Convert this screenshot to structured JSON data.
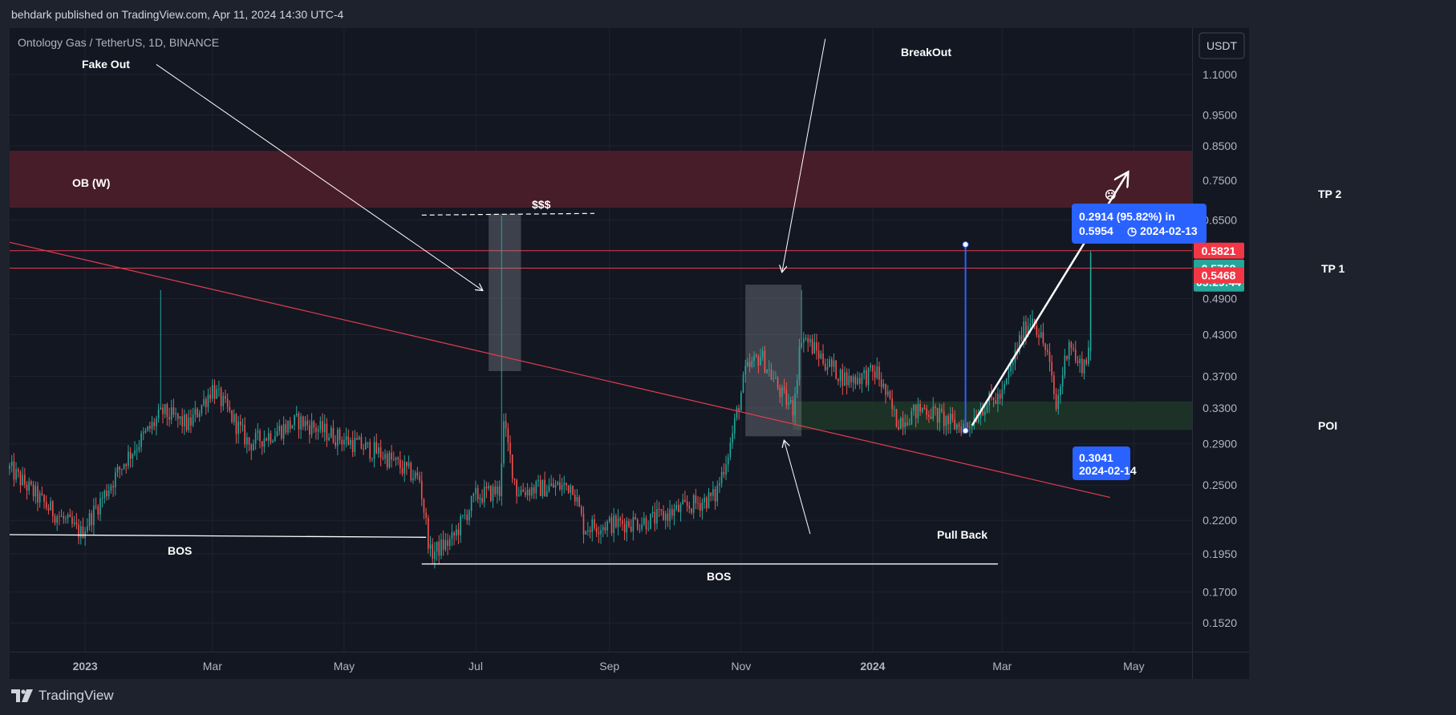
{
  "header": {
    "published": "behdark published on TradingView.com, Apr 11, 2024 14:30 UTC-4"
  },
  "footer": {
    "brand": "TradingView"
  },
  "colors": {
    "background": "#131722",
    "frame": "#1e222d",
    "up": "#26a69a",
    "down": "#ef5350",
    "ob_zone": "#4a1e2a",
    "poi_zone": "#1e3527",
    "trendline": "#e23d52",
    "measure": "#2962ff"
  },
  "chart_data": {
    "type": "candlestick",
    "title": "Ontology Gas / TetherUS, 1D, BINANCE",
    "currency": "USDT",
    "y_scale": "log",
    "ylim": [
      0.137,
      1.3
    ],
    "y_ticks": [
      "1.1000",
      "0.9500",
      "0.8500",
      "0.7500",
      "0.6500",
      "0.4900",
      "0.4300",
      "0.3700",
      "0.3300",
      "0.2900",
      "0.2500",
      "0.2200",
      "0.1950",
      "0.1700",
      "0.1520"
    ],
    "x_ticks": [
      "2023",
      "Mar",
      "May",
      "Jul",
      "Sep",
      "Nov",
      "2024",
      "Mar",
      "May"
    ],
    "x_range": [
      "2022-11-27",
      "2024-05-28"
    ],
    "price_labels": {
      "upper": "0.5821",
      "current": "0.5768",
      "countdown": "05:29:44",
      "lower": "0.5468"
    },
    "horizontal_lines": [
      0.5821,
      0.5468
    ],
    "zones": [
      {
        "label": "OB (W)",
        "from": 0.68,
        "to": 0.835
      },
      {
        "label": "POI",
        "from": 0.305,
        "to": 0.338
      }
    ],
    "annotations": {
      "fake_out": "Fake Out",
      "breakout": "BreakOut",
      "pull_back": "Pull Back",
      "dollars": "$$$",
      "bos_left": "BOS",
      "bos_right": "BOS",
      "tp1": "TP 1",
      "tp2": "TP 2",
      "poi": "POI",
      "ob": "OB (W)",
      "unhappy": "☹"
    },
    "measure": {
      "top": "0.2914 (95.82%) in",
      "top_sub_price": "0.5954",
      "top_sub_date": "2024-02-13",
      "bottom_price": "0.3041",
      "bottom_date": "2024-02-14"
    },
    "key_points": [
      {
        "date": "2022-11-27",
        "price": 0.265
      },
      {
        "date": "2022-12-15",
        "price": 0.23
      },
      {
        "date": "2022-12-30",
        "price": 0.21
      },
      {
        "date": "2023-01-20",
        "price": 0.275
      },
      {
        "date": "2023-02-06",
        "price": 0.325
      },
      {
        "date": "2023-02-18",
        "price": 0.31
      },
      {
        "date": "2023-03-01",
        "price": 0.355
      },
      {
        "date": "2023-03-18",
        "price": 0.29
      },
      {
        "date": "2023-04-10",
        "price": 0.315
      },
      {
        "date": "2023-04-25",
        "price": 0.3
      },
      {
        "date": "2023-05-18",
        "price": 0.28
      },
      {
        "date": "2023-06-05",
        "price": 0.255
      },
      {
        "date": "2023-06-10",
        "price": 0.195
      },
      {
        "date": "2023-06-20",
        "price": 0.205
      },
      {
        "date": "2023-07-01",
        "price": 0.24
      },
      {
        "date": "2023-07-12",
        "price": 0.245
      },
      {
        "date": "2023-07-14",
        "price": 0.31
      },
      {
        "date": "2023-07-20",
        "price": 0.245
      },
      {
        "date": "2023-08-15",
        "price": 0.25
      },
      {
        "date": "2023-08-20",
        "price": 0.215
      },
      {
        "date": "2023-09-20",
        "price": 0.22
      },
      {
        "date": "2023-10-20",
        "price": 0.24
      },
      {
        "date": "2023-10-27",
        "price": 0.29
      },
      {
        "date": "2023-11-03",
        "price": 0.375
      },
      {
        "date": "2023-11-10",
        "price": 0.4
      },
      {
        "date": "2023-11-20",
        "price": 0.345
      },
      {
        "date": "2023-11-25",
        "price": 0.33
      },
      {
        "date": "2023-11-29",
        "price": 0.43
      },
      {
        "date": "2023-12-10",
        "price": 0.39
      },
      {
        "date": "2023-12-20",
        "price": 0.365
      },
      {
        "date": "2024-01-03",
        "price": 0.375
      },
      {
        "date": "2024-01-12",
        "price": 0.315
      },
      {
        "date": "2024-01-25",
        "price": 0.33
      },
      {
        "date": "2024-02-08",
        "price": 0.31
      },
      {
        "date": "2024-02-14",
        "price": 0.31
      },
      {
        "date": "2024-02-22",
        "price": 0.335
      },
      {
        "date": "2024-03-01",
        "price": 0.345
      },
      {
        "date": "2024-03-10",
        "price": 0.43
      },
      {
        "date": "2024-03-15",
        "price": 0.46
      },
      {
        "date": "2024-03-22",
        "price": 0.4
      },
      {
        "date": "2024-03-26",
        "price": 0.33
      },
      {
        "date": "2024-04-01",
        "price": 0.425
      },
      {
        "date": "2024-04-05",
        "price": 0.385
      },
      {
        "date": "2024-04-09",
        "price": 0.39
      },
      {
        "date": "2024-04-10",
        "price": 0.42
      },
      {
        "date": "2024-04-11",
        "price": 0.5768
      }
    ],
    "spikes": [
      {
        "date": "2023-02-05",
        "high": 0.505
      },
      {
        "date": "2023-07-13",
        "high": 0.66
      },
      {
        "date": "2023-11-29",
        "high": 0.505
      },
      {
        "date": "2024-03-15",
        "high": 0.47
      }
    ]
  }
}
